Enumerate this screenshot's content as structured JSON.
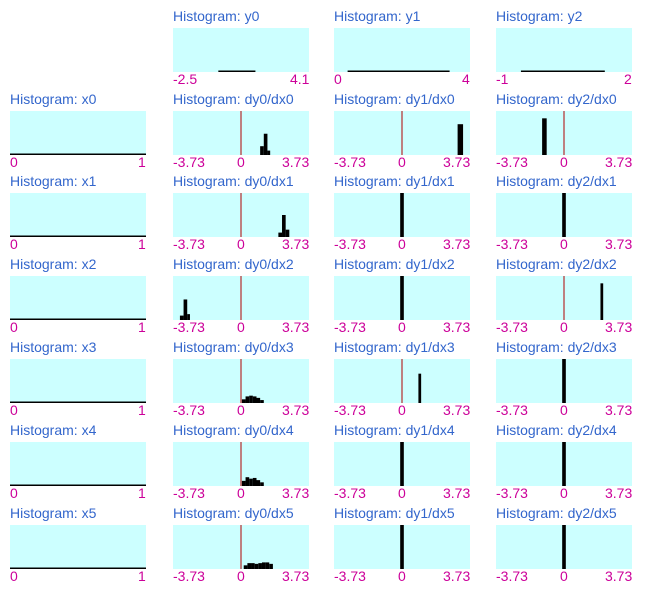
{
  "colors": {
    "title": "#3366cc",
    "tick": "#cc0099",
    "plot_bg": "#ccffff",
    "bar": "#000000",
    "zero_line": "#b00000"
  },
  "chart_data": [
    {
      "row": 0,
      "col": 1,
      "type": "bar",
      "title": "Histogram: y0",
      "xlim": [
        -2.5,
        4.1
      ],
      "ticks": [
        "-2.5",
        "4.1"
      ],
      "bins": [
        [
          -0.3,
          1.5,
          2
        ]
      ]
    },
    {
      "row": 0,
      "col": 2,
      "type": "bar",
      "title": "Histogram: y1",
      "xlim": [
        0,
        4
      ],
      "ticks": [
        "0",
        "4"
      ],
      "bins": [
        [
          0.4,
          3.4,
          2
        ]
      ]
    },
    {
      "row": 0,
      "col": 3,
      "type": "bar",
      "title": "Histogram: y2",
      "xlim": [
        -1,
        2
      ],
      "ticks": [
        "-1",
        "2"
      ],
      "bins": [
        [
          -0.45,
          1.4,
          2
        ]
      ]
    },
    {
      "row": 1,
      "col": 0,
      "type": "bar",
      "title": "Histogram: x0",
      "xlim": [
        0,
        1
      ],
      "ticks": [
        "0",
        "1"
      ],
      "bins": [
        [
          0,
          1,
          2
        ]
      ]
    },
    {
      "row": 1,
      "col": 1,
      "type": "bar",
      "title": "Histogram: dy0/dx0",
      "xlim": [
        -3.73,
        3.73
      ],
      "ticks": [
        "-3.73",
        "0",
        "3.73"
      ],
      "zero_line": true,
      "bins": [
        [
          1.05,
          1.25,
          12
        ],
        [
          1.25,
          1.45,
          29
        ],
        [
          1.45,
          1.6,
          6
        ]
      ]
    },
    {
      "row": 1,
      "col": 2,
      "type": "bar",
      "title": "Histogram: dy1/dx0",
      "xlim": [
        -3.73,
        3.73
      ],
      "ticks": [
        "-3.73",
        "0",
        "3.73"
      ],
      "zero_line": true,
      "bins": [
        [
          3.05,
          3.35,
          42
        ]
      ]
    },
    {
      "row": 1,
      "col": 3,
      "type": "bar",
      "title": "Histogram: dy2/dx0",
      "xlim": [
        -3.73,
        3.73
      ],
      "ticks": [
        "-3.73",
        "0",
        "3.73"
      ],
      "zero_line": true,
      "bins": [
        [
          -1.2,
          -0.95,
          50
        ]
      ]
    },
    {
      "row": 2,
      "col": 0,
      "type": "bar",
      "title": "Histogram: x1",
      "xlim": [
        0,
        1
      ],
      "ticks": [
        "0",
        "1"
      ],
      "bins": [
        [
          0,
          1,
          2
        ]
      ]
    },
    {
      "row": 2,
      "col": 1,
      "type": "bar",
      "title": "Histogram: dy0/dx1",
      "xlim": [
        -3.73,
        3.73
      ],
      "ticks": [
        "-3.73",
        "0",
        "3.73"
      ],
      "zero_line": true,
      "bins": [
        [
          2.05,
          2.25,
          6
        ],
        [
          2.25,
          2.45,
          30
        ],
        [
          2.45,
          2.65,
          10
        ]
      ]
    },
    {
      "row": 2,
      "col": 2,
      "type": "bar",
      "title": "Histogram: dy1/dx1",
      "xlim": [
        -3.73,
        3.73
      ],
      "ticks": [
        "-3.73",
        "0",
        "3.73"
      ],
      "zero_line": true,
      "bins": [
        [
          -0.1,
          0.1,
          60
        ]
      ]
    },
    {
      "row": 2,
      "col": 3,
      "type": "bar",
      "title": "Histogram: dy2/dx1",
      "xlim": [
        -3.73,
        3.73
      ],
      "ticks": [
        "-3.73",
        "0",
        "3.73"
      ],
      "zero_line": true,
      "bins": [
        [
          -0.1,
          0.1,
          60
        ]
      ]
    },
    {
      "row": 3,
      "col": 0,
      "type": "bar",
      "title": "Histogram: x2",
      "xlim": [
        0,
        1
      ],
      "ticks": [
        "0",
        "1"
      ],
      "bins": [
        [
          0,
          1,
          2
        ]
      ]
    },
    {
      "row": 3,
      "col": 1,
      "type": "bar",
      "title": "Histogram: dy0/dx2",
      "xlim": [
        -3.73,
        3.73
      ],
      "ticks": [
        "-3.73",
        "0",
        "3.73"
      ],
      "zero_line": true,
      "bins": [
        [
          -3.35,
          -3.15,
          6
        ],
        [
          -3.15,
          -2.95,
          28
        ],
        [
          -2.95,
          -2.8,
          8
        ]
      ]
    },
    {
      "row": 3,
      "col": 2,
      "type": "bar",
      "title": "Histogram: dy1/dx2",
      "xlim": [
        -3.73,
        3.73
      ],
      "ticks": [
        "-3.73",
        "0",
        "3.73"
      ],
      "zero_line": true,
      "bins": [
        [
          -0.1,
          0.1,
          60
        ]
      ]
    },
    {
      "row": 3,
      "col": 3,
      "type": "bar",
      "title": "Histogram: dy2/dx2",
      "xlim": [
        -3.73,
        3.73
      ],
      "ticks": [
        "-3.73",
        "0",
        "3.73"
      ],
      "zero_line": true,
      "bins": [
        [
          2.0,
          2.15,
          50
        ]
      ]
    },
    {
      "row": 4,
      "col": 0,
      "type": "bar",
      "title": "Histogram: x3",
      "xlim": [
        0,
        1
      ],
      "ticks": [
        "0",
        "1"
      ],
      "bins": [
        [
          0,
          1,
          2
        ]
      ]
    },
    {
      "row": 4,
      "col": 1,
      "type": "bar",
      "title": "Histogram: dy0/dx3",
      "xlim": [
        -3.73,
        3.73
      ],
      "ticks": [
        "-3.73",
        "0",
        "3.73"
      ],
      "zero_line": true,
      "bins": [
        [
          0.05,
          0.25,
          5
        ],
        [
          0.25,
          0.45,
          9
        ],
        [
          0.45,
          0.65,
          10
        ],
        [
          0.65,
          0.85,
          9
        ],
        [
          0.85,
          1.05,
          7
        ],
        [
          1.05,
          1.25,
          4
        ]
      ]
    },
    {
      "row": 4,
      "col": 2,
      "type": "bar",
      "title": "Histogram: dy1/dx3",
      "xlim": [
        -3.73,
        3.73
      ],
      "ticks": [
        "-3.73",
        "0",
        "3.73"
      ],
      "zero_line": true,
      "bins": [
        [
          0.9,
          1.05,
          40
        ]
      ]
    },
    {
      "row": 4,
      "col": 3,
      "type": "bar",
      "title": "Histogram: dy2/dx3",
      "xlim": [
        -3.73,
        3.73
      ],
      "ticks": [
        "-3.73",
        "0",
        "3.73"
      ],
      "zero_line": true,
      "bins": [
        [
          -0.1,
          0.1,
          60
        ]
      ]
    },
    {
      "row": 5,
      "col": 0,
      "type": "bar",
      "title": "Histogram: x4",
      "xlim": [
        0,
        1
      ],
      "ticks": [
        "0",
        "1"
      ],
      "bins": [
        [
          0,
          1,
          2
        ]
      ]
    },
    {
      "row": 5,
      "col": 1,
      "type": "bar",
      "title": "Histogram: dy0/dx4",
      "xlim": [
        -3.73,
        3.73
      ],
      "ticks": [
        "-3.73",
        "0",
        "3.73"
      ],
      "zero_line": true,
      "bins": [
        [
          0.05,
          0.25,
          7
        ],
        [
          0.25,
          0.45,
          12
        ],
        [
          0.45,
          0.65,
          10
        ],
        [
          0.65,
          0.85,
          11
        ],
        [
          0.85,
          1.05,
          8
        ],
        [
          1.05,
          1.25,
          5
        ]
      ]
    },
    {
      "row": 5,
      "col": 2,
      "type": "bar",
      "title": "Histogram: dy1/dx4",
      "xlim": [
        -3.73,
        3.73
      ],
      "ticks": [
        "-3.73",
        "0",
        "3.73"
      ],
      "zero_line": true,
      "bins": [
        [
          -0.1,
          0.1,
          60
        ]
      ]
    },
    {
      "row": 5,
      "col": 3,
      "type": "bar",
      "title": "Histogram: dy2/dx4",
      "xlim": [
        -3.73,
        3.73
      ],
      "ticks": [
        "-3.73",
        "0",
        "3.73"
      ],
      "zero_line": true,
      "bins": [
        [
          -0.1,
          0.1,
          60
        ]
      ]
    },
    {
      "row": 6,
      "col": 0,
      "type": "bar",
      "title": "Histogram: x5",
      "xlim": [
        0,
        1
      ],
      "ticks": [
        "0",
        "1"
      ],
      "bins": [
        [
          0,
          1,
          2
        ]
      ]
    },
    {
      "row": 6,
      "col": 1,
      "type": "bar",
      "title": "Histogram: dy0/dx5",
      "xlim": [
        -3.73,
        3.73
      ],
      "ticks": [
        "-3.73",
        "0",
        "3.73"
      ],
      "zero_line": true,
      "bins": [
        [
          0.15,
          0.35,
          5
        ],
        [
          0.35,
          0.55,
          8
        ],
        [
          0.55,
          0.75,
          8
        ],
        [
          0.75,
          0.95,
          7
        ],
        [
          0.95,
          1.15,
          8
        ],
        [
          1.15,
          1.35,
          9
        ],
        [
          1.35,
          1.55,
          9
        ],
        [
          1.55,
          1.75,
          7
        ]
      ]
    },
    {
      "row": 6,
      "col": 2,
      "type": "bar",
      "title": "Histogram: dy1/dx5",
      "xlim": [
        -3.73,
        3.73
      ],
      "ticks": [
        "-3.73",
        "0",
        "3.73"
      ],
      "zero_line": true,
      "bins": [
        [
          -0.1,
          0.1,
          60
        ]
      ]
    },
    {
      "row": 6,
      "col": 3,
      "type": "bar",
      "title": "Histogram: dy2/dx5",
      "xlim": [
        -3.73,
        3.73
      ],
      "ticks": [
        "-3.73",
        "0",
        "3.73"
      ],
      "zero_line": true,
      "bins": [
        [
          -0.1,
          0.1,
          60
        ]
      ]
    }
  ]
}
